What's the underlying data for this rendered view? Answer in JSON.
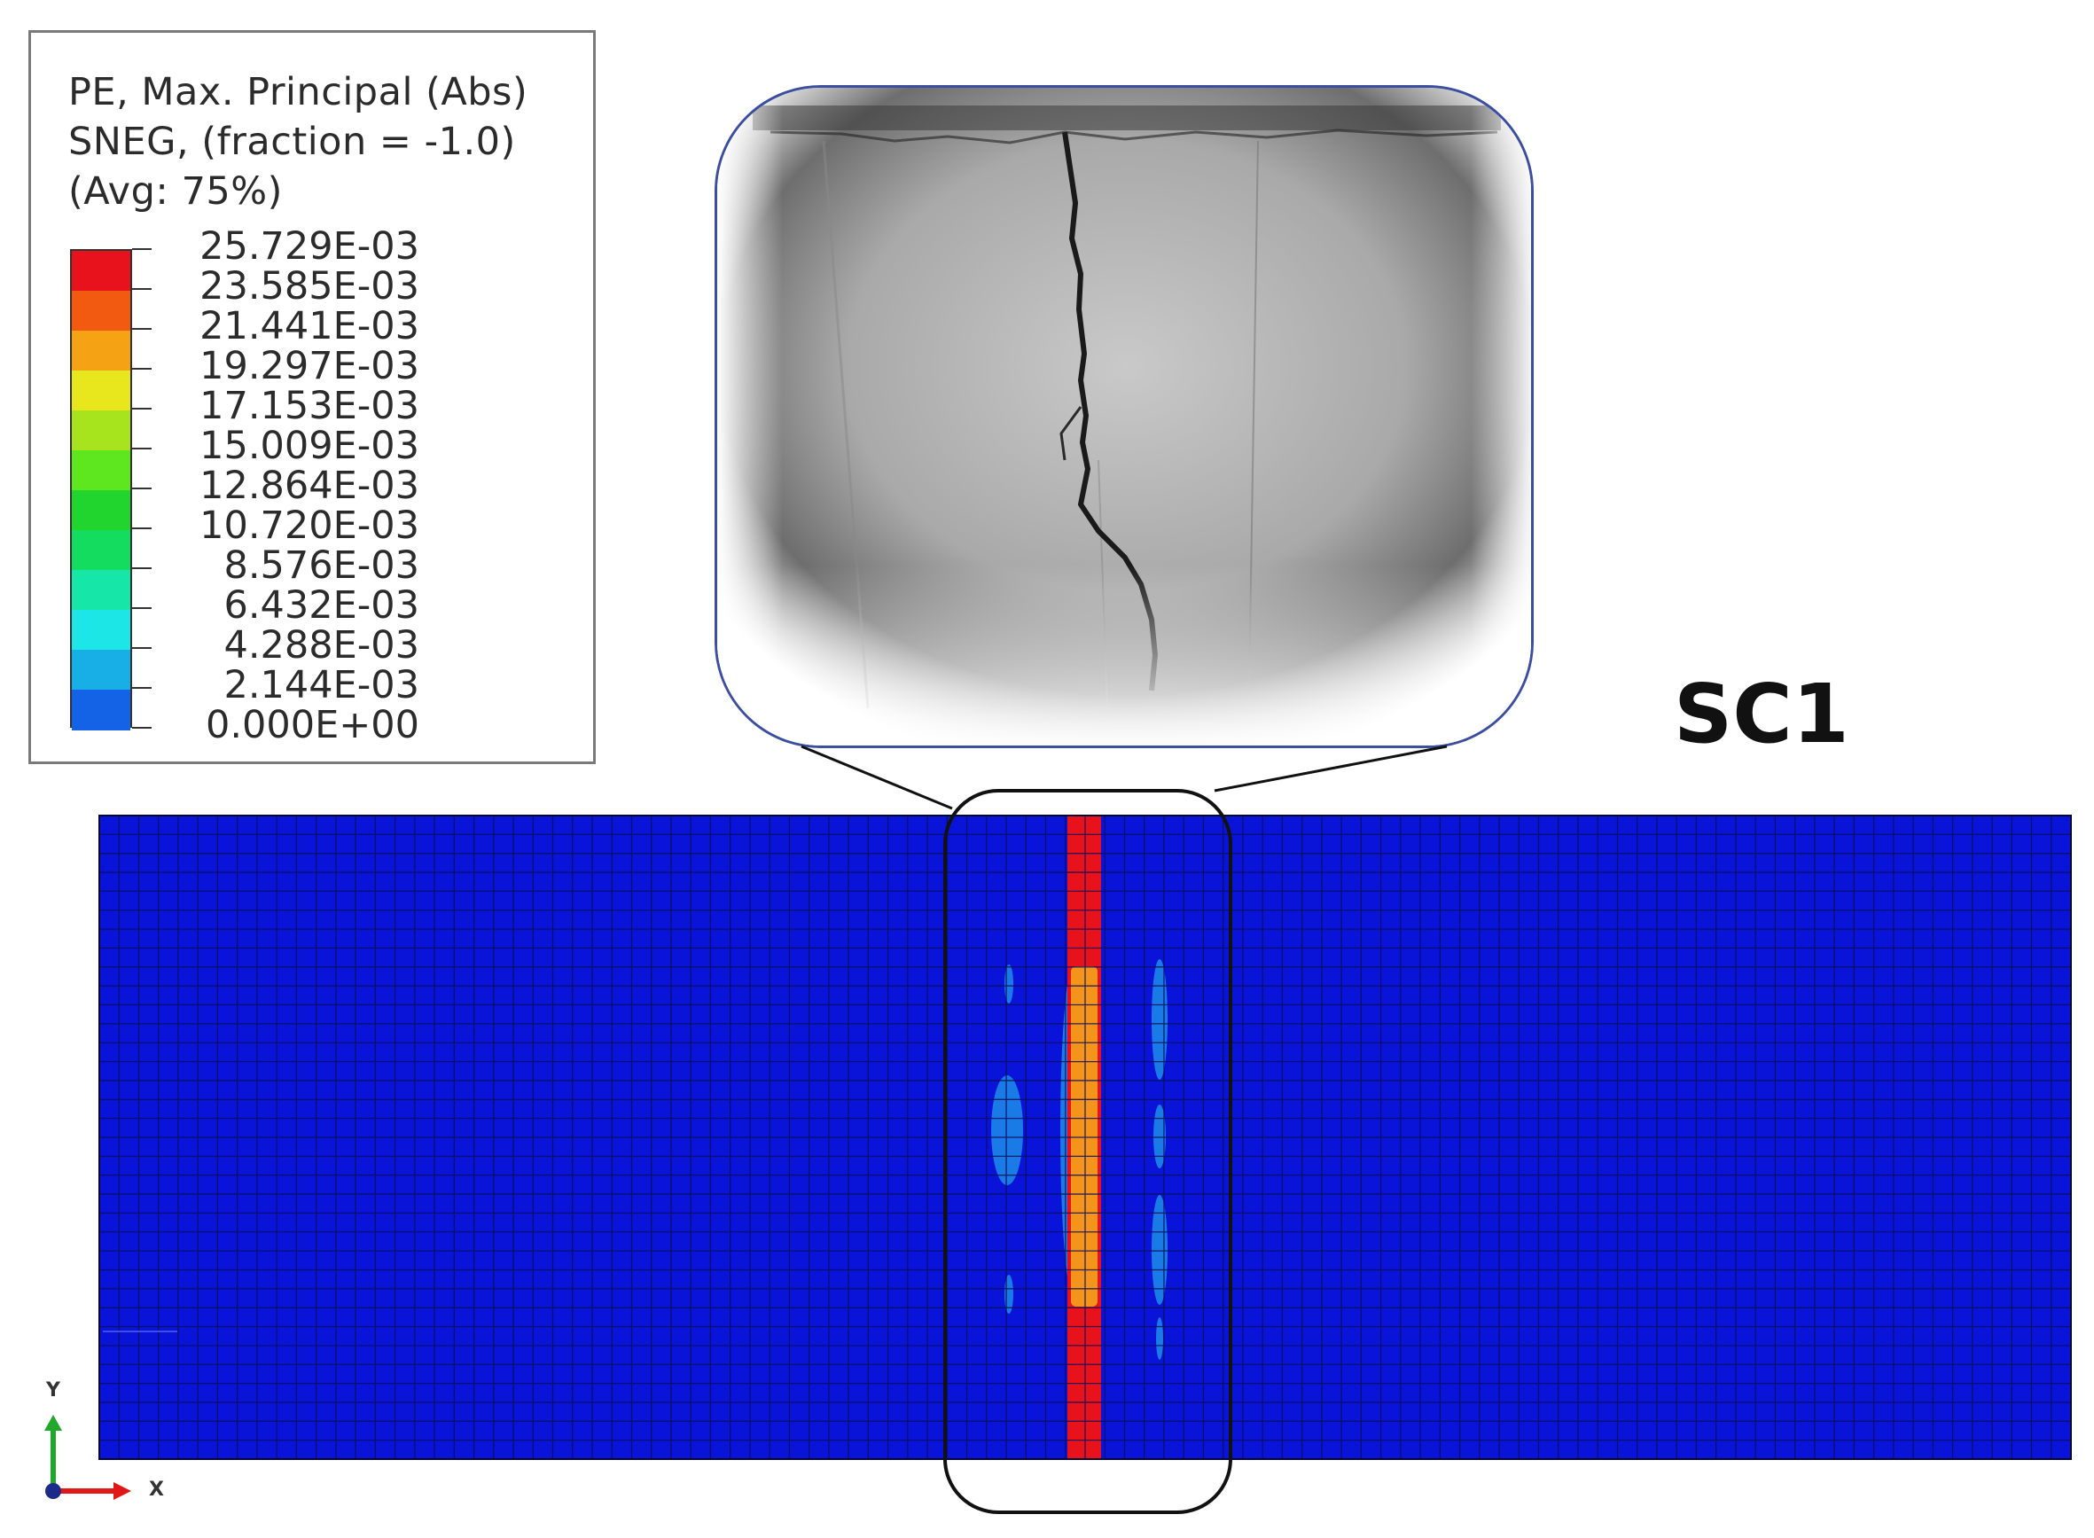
{
  "legend": {
    "title_lines": [
      "PE, Max. Principal (Abs)",
      "SNEG, (fraction = -1.0)",
      "(Avg: 75%)"
    ],
    "ticks": [
      "25.729E-03",
      "23.585E-03",
      "21.441E-03",
      "19.297E-03",
      "17.153E-03",
      "15.009E-03",
      "12.864E-03",
      "10.720E-03",
      "8.576E-03",
      "6.432E-03",
      "4.288E-03",
      "2.144E-03",
      "0.000E+00"
    ],
    "colors": [
      "#e8121c",
      "#f25a12",
      "#f5a214",
      "#e8e61c",
      "#a8e41e",
      "#5ee61e",
      "#22d42e",
      "#14dc5e",
      "#16e6a8",
      "#1ce6e6",
      "#18aee6",
      "#1462e6",
      "#0a14e0"
    ]
  },
  "specimen_label": "SC1",
  "mesh": {
    "background_color": "#0a14d8",
    "grid_color": "#0a0e5a",
    "crack_band_color": "#e8121c",
    "inner_band_color": "#f5941a",
    "contour_color": "#1a7ae6"
  },
  "axes": {
    "y_label": "Y",
    "x_label": "X",
    "y_color": "#1fa82a",
    "x_color": "#e01818",
    "origin_color": "#1d2a8a"
  },
  "photo": {
    "subject": "concrete crack photograph"
  }
}
